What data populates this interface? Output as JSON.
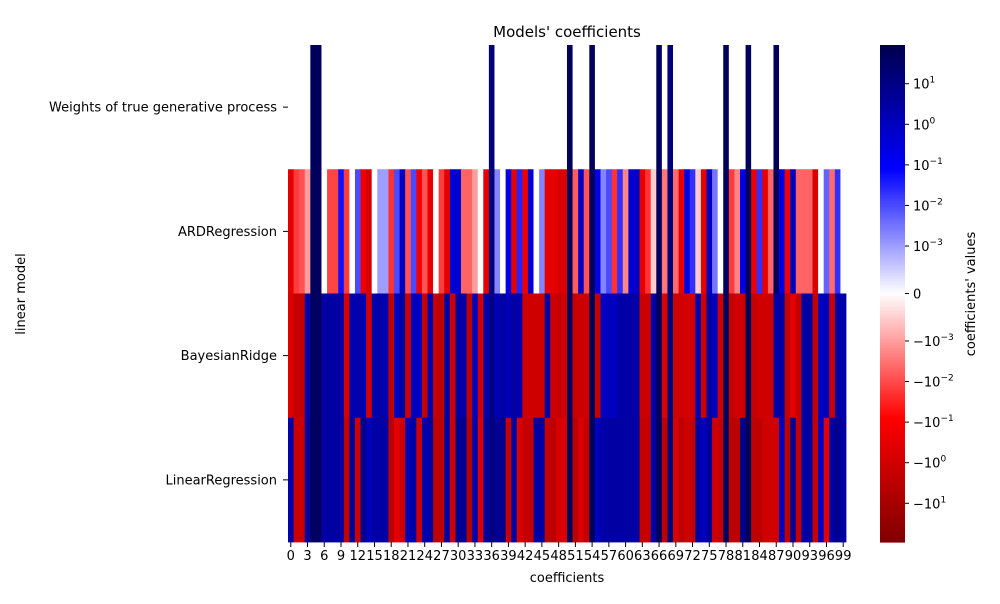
{
  "chart_data": {
    "type": "heatmap",
    "title": "Models' coefficients",
    "xlabel": "coefficients",
    "ylabel": "linear model",
    "colorbar_label": "coefficients' values",
    "colormap": "seismic_r",
    "color_scale": "symlog",
    "linthresh": 0.001,
    "vmin": -90,
    "vmax": 90,
    "colors": {
      "positive_max": "#00004d",
      "positive_mid": "#0000ff",
      "zero": "#ffffff",
      "negative_mid": "#ff0000",
      "negative_max": "#800000"
    },
    "rows": [
      "Weights of true generative process",
      "ARDRegression",
      "BayesianRidge",
      "LinearRegression"
    ],
    "x_tick_labels": [
      "0",
      "3",
      "6",
      "9",
      "12",
      "15",
      "18",
      "21",
      "24",
      "27",
      "30",
      "33",
      "36",
      "39",
      "42",
      "45",
      "48",
      "51",
      "54",
      "57",
      "60",
      "63",
      "66",
      "69",
      "72",
      "75",
      "78",
      "81",
      "84",
      "87",
      "90",
      "93",
      "96",
      "99"
    ],
    "colorbar_ticks": [
      {
        "sign": "",
        "base": "10",
        "exp": "1",
        "value": 10
      },
      {
        "sign": "",
        "base": "10",
        "exp": "0",
        "value": 1
      },
      {
        "sign": "",
        "base": "10",
        "exp": "−1",
        "value": 0.1
      },
      {
        "sign": "",
        "base": "10",
        "exp": "−2",
        "value": 0.01
      },
      {
        "sign": "",
        "base": "10",
        "exp": "−3",
        "value": 0.001
      },
      {
        "sign": "",
        "base": "0",
        "exp": "",
        "value": 0
      },
      {
        "sign": "−",
        "base": "10",
        "exp": "−3",
        "value": -0.001
      },
      {
        "sign": "−",
        "base": "10",
        "exp": "−2",
        "value": -0.01
      },
      {
        "sign": "−",
        "base": "10",
        "exp": "−1",
        "value": -0.1
      },
      {
        "sign": "−",
        "base": "10",
        "exp": "0",
        "value": -1
      },
      {
        "sign": "−",
        "base": "10",
        "exp": "1",
        "value": -10
      }
    ],
    "values": [
      [
        0,
        0,
        0,
        0,
        50,
        50,
        0,
        0,
        0,
        0,
        0,
        0,
        0,
        0,
        0,
        0,
        0,
        0,
        0,
        0,
        0,
        0,
        0,
        0,
        0,
        0,
        0,
        0,
        0,
        0,
        0,
        0,
        0,
        0,
        0,
        0,
        15,
        0,
        0,
        0,
        0,
        0,
        0,
        0,
        0,
        0,
        0,
        0,
        0,
        0,
        50,
        0,
        0,
        0,
        50,
        0,
        0,
        0,
        0,
        0,
        0,
        0,
        0,
        0,
        0,
        0,
        50,
        0,
        15,
        0,
        0,
        0,
        0,
        0,
        0,
        0,
        0,
        0,
        50,
        0,
        0,
        0,
        50,
        0,
        0,
        0,
        0,
        50,
        0,
        0,
        0,
        0,
        0,
        0,
        0,
        0,
        0,
        0,
        0,
        0
      ],
      [
        -0.3,
        -0.015,
        -0.008,
        -0.001,
        50,
        50,
        0,
        -0.012,
        -0.012,
        0.05,
        -0.015,
        0,
        0.01,
        -0.2,
        -0.7,
        0,
        0.001,
        0.001,
        -0.02,
        0.01,
        1,
        -0.008,
        0.01,
        -0.15,
        -0.008,
        -0.3,
        0,
        -0.015,
        -0.3,
        0.5,
        0.5,
        -0.005,
        -0.005,
        -0.001,
        0,
        -0.3,
        15,
        0.002,
        0,
        0.2,
        -0.3,
        0.03,
        -0.2,
        0.5,
        0,
        0.002,
        -0.3,
        -0.3,
        -0.6,
        -0.6,
        50,
        -0.006,
        0.8,
        -0.008,
        50,
        0.2,
        0.002,
        0.01,
        -0.02,
        0.02,
        -0.002,
        0.5,
        0.8,
        -0.3,
        -0.02,
        -0.0005,
        50,
        -0.003,
        15,
        -0.004,
        -0.4,
        0.2,
        0.02,
        -0.0005,
        -0.3,
        1,
        0.003,
        0,
        50,
        -0.015,
        -0.002,
        0.2,
        50,
        -0.2,
        0.02,
        -0.3,
        -0.005,
        50,
        0.2,
        -0.2,
        1,
        -0.005,
        -0.005,
        -0.005,
        -0.6,
        0,
        0.005,
        -0.004,
        0.02,
        0
      ],
      [
        -0.5,
        -2,
        -2,
        2,
        40,
        40,
        3,
        3,
        3,
        3,
        -0.8,
        2,
        2,
        2,
        -0.8,
        2,
        2,
        2,
        -2,
        1,
        3,
        -1,
        1,
        1,
        -2,
        2,
        -2,
        -3,
        3,
        -1,
        3,
        3,
        -3,
        1,
        -1,
        2,
        10,
        1.5,
        3,
        1.5,
        3,
        2,
        -1.2,
        -1.2,
        -1.2,
        -1.2,
        3,
        -1,
        -2,
        -1,
        50,
        -1.5,
        -1.5,
        -1.2,
        50,
        -2,
        1,
        1,
        1,
        2.5,
        2.5,
        2.5,
        2.5,
        -1.3,
        -1.3,
        3,
        50,
        -0.5,
        15,
        -1.2,
        -1.2,
        -0.8,
        -1,
        2,
        -1,
        3,
        1,
        -1,
        50,
        -2,
        -1,
        -1,
        50,
        -2,
        -1.2,
        -1.2,
        -1.2,
        3,
        3,
        -2,
        -0.4,
        -2,
        3,
        3,
        -2,
        1,
        1,
        -1,
        3,
        2
      ],
      [
        2,
        -1.5,
        -1.5,
        4,
        40,
        40,
        3,
        3,
        3,
        3,
        -2,
        4,
        -1,
        8,
        1,
        3,
        3,
        3,
        -3,
        -0.4,
        -1,
        1.5,
        3,
        -1,
        2,
        3,
        -3,
        -3,
        3,
        -1,
        6,
        6,
        -5,
        2,
        -0.6,
        4,
        12,
        6,
        7,
        -1.5,
        3,
        -0.6,
        -2,
        -2,
        3,
        3,
        -2,
        -3,
        -0.8,
        -0.6,
        50,
        -3,
        -0.6,
        -2,
        50,
        1,
        3,
        3,
        3,
        3,
        3,
        3,
        3,
        -2,
        -2,
        3,
        50,
        -3,
        15,
        -0.6,
        -3,
        -1.2,
        -2,
        3,
        1,
        5,
        -1,
        -2,
        50,
        -3,
        -3,
        8,
        50,
        -2.5,
        -3,
        -1,
        -1,
        -1,
        1,
        -3,
        5,
        -2,
        3,
        3,
        -2,
        0.8,
        -0.4,
        3,
        6,
        3
      ]
    ]
  }
}
